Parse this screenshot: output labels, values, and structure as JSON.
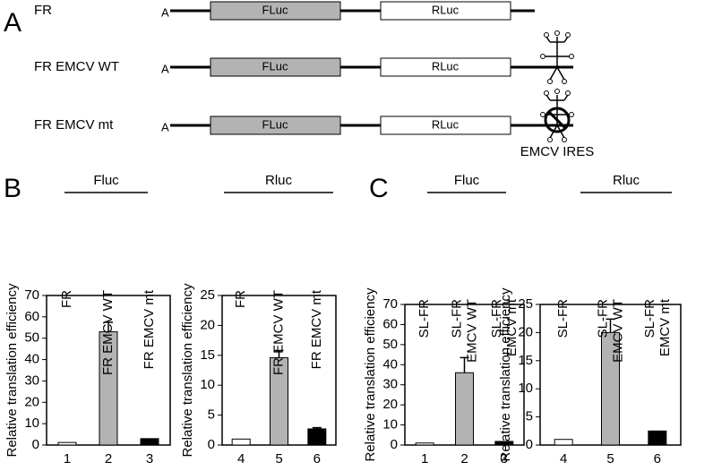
{
  "panel_a": {
    "label": "A",
    "ires_label": "EMCV IRES",
    "constructs": [
      {
        "name": "FR",
        "prefix": "A",
        "boxes": [
          "FLuc",
          "RLuc"
        ]
      },
      {
        "name": "FR EMCV WT",
        "prefix": "A",
        "boxes": [
          "FLuc",
          "RLuc"
        ]
      },
      {
        "name": "FR EMCV mt",
        "prefix": "A",
        "boxes": [
          "FLuc",
          "RLuc"
        ]
      }
    ]
  },
  "panel_labels": [
    "B",
    "C"
  ],
  "chart_data": [
    {
      "type": "bar",
      "header": "Fluc",
      "ylabel": "Relative translation efficiency",
      "categories": [
        "FR",
        "FR EMCV WT",
        "FR EMCV mt"
      ],
      "lanes": [
        "1",
        "2",
        "3"
      ],
      "values": [
        1.2,
        53,
        3
      ],
      "errors": [
        null,
        4.5,
        null
      ],
      "colors": [
        "#ffffff",
        "#b3b3b3",
        "#000000"
      ],
      "ylim": [
        0,
        70
      ],
      "yticks": [
        0,
        10,
        20,
        30,
        40,
        50,
        60,
        70
      ]
    },
    {
      "type": "bar",
      "header": "Rluc",
      "ylabel": "Relative translation efficiency",
      "categories": [
        "FR",
        "FR EMCV WT",
        "FR EMCV mt"
      ],
      "lanes": [
        "4",
        "5",
        "6"
      ],
      "values": [
        1,
        14.6,
        2.7
      ],
      "errors": [
        null,
        1.2,
        0.2
      ],
      "colors": [
        "#ffffff",
        "#b3b3b3",
        "#000000"
      ],
      "ylim": [
        0,
        25
      ],
      "yticks": [
        0,
        5,
        10,
        15,
        20,
        25
      ]
    },
    {
      "type": "bar",
      "header": "Fluc",
      "ylabel": "Relative translation efficiency",
      "categories": [
        "SL-FR",
        "SL-FR\nEMCV WT",
        "SL-FR\nEMCV mt"
      ],
      "lanes": [
        "1",
        "2",
        "3"
      ],
      "values": [
        1,
        36,
        1.8
      ],
      "errors": [
        null,
        7.5,
        null
      ],
      "colors": [
        "#ffffff",
        "#b3b3b3",
        "#000000"
      ],
      "ylim": [
        0,
        70
      ],
      "yticks": [
        0,
        10,
        20,
        30,
        40,
        50,
        60,
        70
      ]
    },
    {
      "type": "bar",
      "header": "Rluc",
      "ylabel": "Relative translation efficiency",
      "categories": [
        "SL-FR",
        "SL-FR\nEMCV WT",
        "SL-FR\nEMCV mt"
      ],
      "lanes": [
        "4",
        "5",
        "6"
      ],
      "values": [
        1,
        20,
        2.5
      ],
      "errors": [
        null,
        2.4,
        null
      ],
      "colors": [
        "#ffffff",
        "#b3b3b3",
        "#000000"
      ],
      "ylim": [
        0,
        25
      ],
      "yticks": [
        0,
        5,
        10,
        15,
        20,
        25
      ]
    }
  ]
}
